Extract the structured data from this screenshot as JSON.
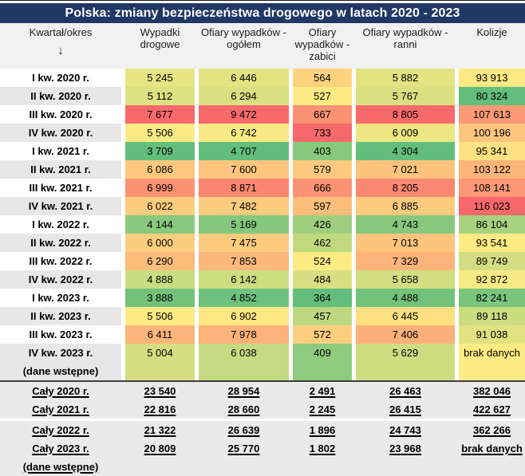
{
  "title_bar": {
    "text": "Polska: zmiany bezpieczeństwa drogowego w latach 2020 - 2023"
  },
  "header_arrow_icon": "↓",
  "colors": {
    "title_bar_bg": "#1F3864",
    "title_bar_text": "#FFFFFF",
    "header_bg": "#F1F1F1",
    "row_alt_bg": "#E7E7E7",
    "totals_bg": "#EAEAEA",
    "heat_min_color": "#63BE7B",
    "heat_mid_color": "#FFEB84",
    "heat_max_color": "#F8696B",
    "no_data_bg": "#FFEB84",
    "separator_dark": "#3F3F3F"
  },
  "chart_data": {
    "type": "table",
    "title": "Polska: zmiany bezpieczeństwa drogowego w latach 2020 - 2023",
    "columns": [
      "Kwartał/okres",
      "Wypadki drogowe",
      "Ofiary wypadków - ogółem",
      "Ofiary wypadków - zabici",
      "Ofiary wypadków - ranni",
      "Kolizje"
    ],
    "no_data_label": "brak danych",
    "heatmap": {
      "applies_to": "quarter_rows",
      "scale": "3-color per column",
      "min_color": "#63BE7B",
      "mid_color": "#FFEB84",
      "max_color": "#F8696B",
      "midpoint": "percentile-50"
    },
    "quarter_rows": [
      {
        "label": "I kw. 2020 r.",
        "values": [
          5245,
          6446,
          564,
          5882,
          93913
        ]
      },
      {
        "label": "II kw. 2020 r.",
        "values": [
          5112,
          6294,
          527,
          5767,
          80324
        ]
      },
      {
        "label": "III kw. 2020 r.",
        "values": [
          7677,
          9472,
          667,
          8805,
          107613
        ]
      },
      {
        "label": "IV kw. 2020 r.",
        "values": [
          5506,
          6742,
          733,
          6009,
          100196
        ]
      },
      {
        "label": "I kw. 2021 r.",
        "values": [
          3709,
          4707,
          403,
          4304,
          95341
        ]
      },
      {
        "label": "II kw. 2021 r.",
        "values": [
          6086,
          7600,
          579,
          7021,
          103122
        ]
      },
      {
        "label": "III kw. 2021 r.",
        "values": [
          6999,
          8871,
          666,
          8205,
          108141
        ]
      },
      {
        "label": "IV kw. 2021 r.",
        "values": [
          6022,
          7482,
          597,
          6885,
          116023
        ]
      },
      {
        "label": "I kw. 2022 r.",
        "values": [
          4144,
          5169,
          426,
          4743,
          86104
        ]
      },
      {
        "label": "II kw. 2022 r.",
        "values": [
          6000,
          7475,
          462,
          7013,
          93541
        ]
      },
      {
        "label": "III kw. 2022 r.",
        "values": [
          6290,
          7853,
          524,
          7329,
          89749
        ]
      },
      {
        "label": "IV kw. 2022 r.",
        "values": [
          4888,
          6142,
          484,
          5658,
          92872
        ]
      },
      {
        "label": "I kw. 2023 r.",
        "values": [
          3888,
          4852,
          364,
          4488,
          82241
        ]
      },
      {
        "label": "II kw. 2023 r.",
        "values": [
          5506,
          6902,
          457,
          6445,
          89118
        ]
      },
      {
        "label": "III kw. 2023 r.",
        "values": [
          6411,
          7978,
          572,
          7406,
          91038
        ]
      },
      {
        "label": "IV kw. 2023 r.",
        "sublabel": "(dane wstępne)",
        "values": [
          5004,
          6038,
          409,
          5629,
          null
        ]
      }
    ],
    "total_rows": [
      {
        "label": "Cały 2020 r.",
        "values": [
          23540,
          28954,
          2491,
          26463,
          382046
        ]
      },
      {
        "label": "Cały 2021 r.",
        "values": [
          22816,
          28660,
          2245,
          26415,
          422627
        ]
      },
      {
        "label": "Cały 2022 r.",
        "separator_before": true,
        "values": [
          21322,
          26639,
          1896,
          24743,
          362266
        ]
      },
      {
        "label": "Cały 2023 r.",
        "sublabel": "(dane wstępne)",
        "values": [
          20809,
          25770,
          1802,
          23968,
          null
        ]
      }
    ]
  }
}
